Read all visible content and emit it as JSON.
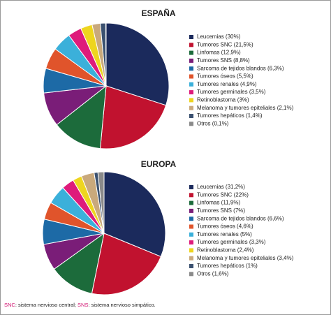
{
  "chart_data": [
    {
      "type": "pie",
      "title": "ESPAÑA",
      "categories": [
        "Leucemias (30%)",
        "Tumores SNC (21,5%)",
        "Linfomas (12,9%)",
        "Tumores SNS (8,8%)",
        "Sarcoma de tejidos blandos (6,3%)",
        "Tumores óseos (5,5%)",
        "Tumores renales (4,9%)",
        "Tumores germinales (3,5%)",
        "Retinoblastoma (3%)",
        "Melanoma y tumores epiteliales (2,1%)",
        "Tumores hepáticos (1,4%)",
        "Otros (0,1%)"
      ],
      "values": [
        30,
        21.5,
        12.9,
        8.8,
        6.3,
        5.5,
        4.9,
        3.5,
        3,
        2.1,
        1.4,
        0.1
      ],
      "colors": [
        "#1b2a5c",
        "#c1122f",
        "#1c6b3b",
        "#7a1d78",
        "#1d6aa6",
        "#e0542b",
        "#3bb0da",
        "#de1b7b",
        "#eed51f",
        "#c9a97c",
        "#3b5170",
        "#8a8a8a"
      ]
    },
    {
      "type": "pie",
      "title": "EUROPA",
      "categories": [
        "Leucemias (31,2%)",
        "Tumores SNC (22%)",
        "Linfomas (11,9%)",
        "Tumores SNS (7%)",
        "Sarcoma de tejidos blandos (6,6%)",
        "Tumores óseos (4,6%)",
        "Tumores renales (5%)",
        "Tumores germinales (3,3%)",
        "Retinoblastoma (2,4%)",
        "Melanoma y tumores epiteliales (3,4%)",
        "Tumores hepáticos (1%)",
        "Otros (1,6%)"
      ],
      "values": [
        31.2,
        22,
        11.9,
        7,
        6.6,
        4.6,
        5,
        3.3,
        2.4,
        3.4,
        1,
        1.6
      ],
      "colors": [
        "#1b2a5c",
        "#c1122f",
        "#1c6b3b",
        "#7a1d78",
        "#1d6aa6",
        "#e0542b",
        "#3bb0da",
        "#de1b7b",
        "#eed51f",
        "#c9a97c",
        "#3b5170",
        "#8a8a8a"
      ]
    }
  ],
  "footnote": [
    "SNC",
    ": sistema nervioso central; ",
    "SNS",
    ": sistema nervioso simpático."
  ]
}
